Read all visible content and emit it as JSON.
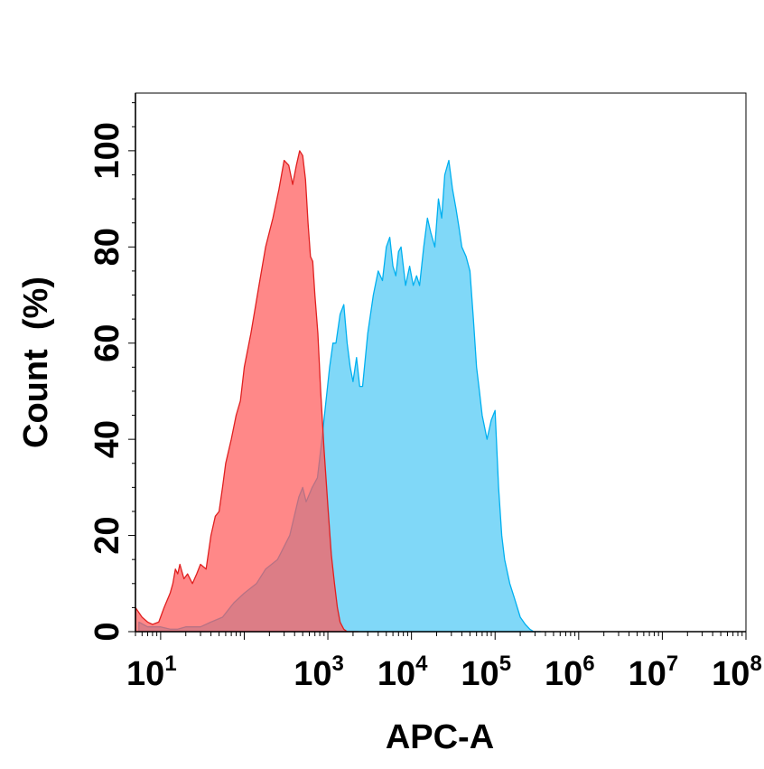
{
  "chart_data": {
    "type": "area",
    "title": "",
    "xlabel": "APC-A",
    "ylabel": "Count  (%)",
    "x_scale": "log",
    "xlim": [
      5,
      100000000
    ],
    "ylim": [
      0,
      112
    ],
    "grid": false,
    "legend": "none",
    "y_ticks": [
      {
        "value": 0,
        "label": "0"
      },
      {
        "value": 20,
        "label": "20"
      },
      {
        "value": 40,
        "label": "40"
      },
      {
        "value": 60,
        "label": "60"
      },
      {
        "value": 80,
        "label": "80"
      },
      {
        "value": 100,
        "label": "100"
      }
    ],
    "x_ticks": [
      {
        "value": 10,
        "base": "10",
        "exp": "1"
      },
      {
        "value": 1000,
        "base": "10",
        "exp": "3"
      },
      {
        "value": 10000,
        "base": "10",
        "exp": "4"
      },
      {
        "value": 100000,
        "base": "10",
        "exp": "5"
      },
      {
        "value": 1000000,
        "base": "10",
        "exp": "6"
      },
      {
        "value": 10000000,
        "base": "10",
        "exp": "7"
      },
      {
        "value": 100000000,
        "base": "10",
        "exp": "8"
      }
    ],
    "series": [
      {
        "color": "#00b0f0",
        "fill": "#80d8f8",
        "x": [
          5.5,
          7,
          10,
          13,
          16,
          20,
          30,
          40,
          55,
          75,
          100,
          140,
          180,
          250,
          350,
          450,
          500,
          550,
          650,
          750,
          850,
          950,
          1050,
          1150,
          1250,
          1400,
          1550,
          1700,
          1850,
          2000,
          2200,
          2400,
          2600,
          3000,
          3500,
          4000,
          4500,
          5000,
          5500,
          6000,
          6500,
          7000,
          7500,
          8500,
          9500,
          10500,
          11500,
          12500,
          14000,
          15500,
          17000,
          19000,
          21000,
          23000,
          25000,
          28000,
          31000,
          34000,
          37000,
          40000,
          45000,
          50000,
          55000,
          60000,
          65000,
          70000,
          80000,
          90000,
          100000,
          110000,
          120000,
          130000,
          150000,
          170000,
          200000,
          230000,
          260000,
          290000,
          320000,
          350000
        ],
        "values": [
          2,
          1,
          1,
          0.5,
          0.5,
          1,
          1,
          2,
          3,
          6,
          8,
          10,
          13,
          15,
          20,
          28,
          30,
          27,
          30,
          32,
          40,
          48,
          55,
          60,
          60,
          66,
          68,
          60,
          55,
          52,
          57,
          51,
          51,
          62,
          70,
          75,
          73,
          80,
          82,
          76,
          74,
          79,
          80,
          72,
          76,
          72,
          74,
          72,
          80,
          86,
          83,
          80,
          90,
          86,
          95,
          98,
          92,
          88,
          84,
          80,
          78,
          75,
          65,
          55,
          50,
          45,
          40,
          44,
          46,
          30,
          20,
          15,
          10,
          7,
          3,
          1.5,
          0.5,
          0,
          0,
          0
        ]
      },
      {
        "color": "#e02020",
        "fill": "#ff5a5a",
        "fill_opacity": 0.72,
        "x": [
          5,
          6,
          7,
          8,
          9.5,
          11,
          13,
          14,
          15,
          16,
          17,
          19,
          21,
          24,
          27,
          30,
          35,
          40,
          45,
          50,
          55,
          60,
          70,
          80,
          90,
          100,
          120,
          150,
          180,
          220,
          260,
          300,
          340,
          380,
          420,
          460,
          500,
          540,
          580,
          620,
          660,
          700,
          760,
          820,
          900,
          1000,
          1100,
          1200,
          1300,
          1400,
          1550,
          1700,
          1900,
          2100,
          2300
        ],
        "values": [
          5,
          3,
          2,
          1.5,
          2,
          5,
          8,
          10,
          13,
          12,
          14,
          11,
          12,
          10,
          12,
          14,
          13,
          20,
          24,
          25,
          30,
          35,
          40,
          45,
          48,
          55,
          62,
          72,
          80,
          86,
          92,
          98,
          97,
          93,
          97,
          100,
          99,
          94,
          85,
          78,
          77,
          70,
          62,
          50,
          38,
          26,
          16,
          10,
          5,
          2,
          0.5,
          0,
          0,
          0,
          0
        ]
      }
    ]
  }
}
